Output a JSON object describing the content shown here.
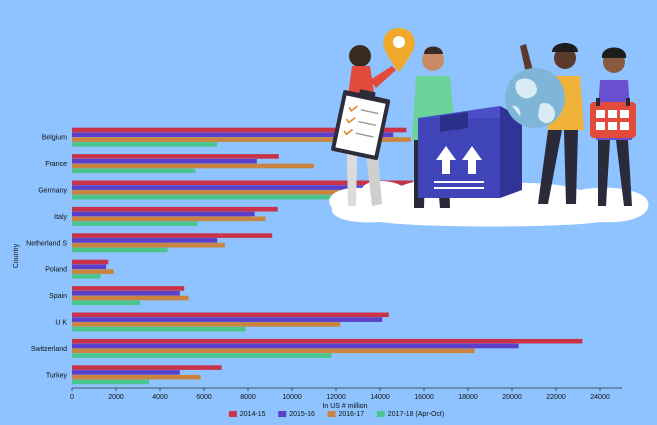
{
  "colors": {
    "background": "#8ec3ff",
    "series": [
      "#c8334a",
      "#5a3fc8",
      "#c98540",
      "#4bc58e"
    ]
  },
  "chart_data": {
    "type": "bar",
    "orientation": "horizontal",
    "categories": [
      "Belgium",
      "France",
      "Germany",
      "Italy",
      "Netherland S",
      "Poland",
      "Spain",
      "U K",
      "Switzerland",
      "Turkey"
    ],
    "series": [
      {
        "name": "2014-15",
        "values": [
          15200,
          9400,
          15500,
          9350,
          9100,
          1650,
          5100,
          14400,
          23200,
          6800
        ]
      },
      {
        "name": "2015-16",
        "values": [
          14600,
          8400,
          15000,
          8300,
          6600,
          1550,
          4900,
          14100,
          20300,
          4900
        ]
      },
      {
        "name": "2016-17",
        "values": [
          15400,
          11000,
          15800,
          8800,
          6950,
          1900,
          5300,
          12200,
          18300,
          5850
        ]
      },
      {
        "name": "2017-18 (Apr-Oct)",
        "values": [
          6600,
          5600,
          12600,
          5700,
          4350,
          1300,
          3100,
          7900,
          11800,
          3500
        ]
      }
    ],
    "xlabel": "In US # million",
    "ylabel": "Country",
    "xlim": [
      0,
      25000
    ],
    "xticks": [
      0,
      2000,
      4000,
      6000,
      8000,
      10000,
      12000,
      14000,
      16000,
      18000,
      20000,
      22000,
      24000
    ],
    "grid": false,
    "legend": "bottom"
  },
  "illustration": {
    "description_icons": [
      "location-pin-icon",
      "clipboard-checklist-icon",
      "shipping-box-icon",
      "globe-icon",
      "calendar-icon"
    ]
  }
}
